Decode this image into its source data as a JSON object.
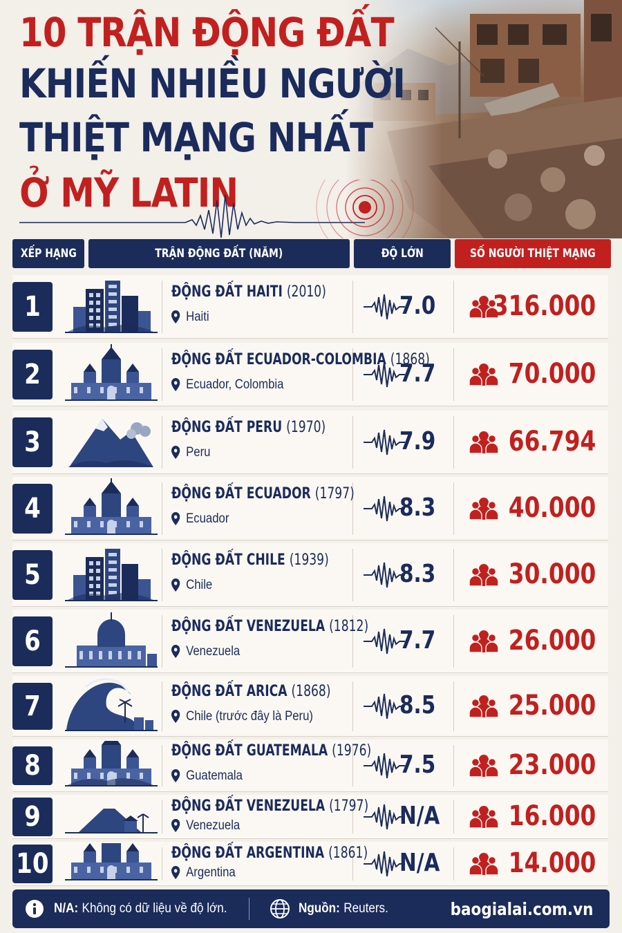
{
  "title": {
    "line1": "10 TRẬN ĐỘNG ĐẤT",
    "line2": "KHIẾN NHIỀU NGƯỜI",
    "line3": "THIỆT MẠNG NHẤT",
    "line4": "Ở MỸ LATIN"
  },
  "table": {
    "headers": {
      "rank": "XẾP HẠNG",
      "earthquake": "TRẬN ĐỘNG ĐẤT (NĂM)",
      "magnitude": "ĐỘ LỚN",
      "deaths": "SỐ NGƯỜI THIỆT MẠNG"
    },
    "rows": [
      {
        "rank": "1",
        "name": "ĐỘNG ĐẤT HAITI",
        "year": "(2010)",
        "location": "Haiti",
        "magnitude": "7.0",
        "deaths": "316.000",
        "illustration": "ruined-city"
      },
      {
        "rank": "2",
        "name": "ĐỘNG ĐẤT ECUADOR-COLOMBIA",
        "year": "(1868)",
        "location": "Ecuador, Colombia",
        "magnitude": "7.7",
        "deaths": "70.000",
        "illustration": "cathedral"
      },
      {
        "rank": "3",
        "name": "ĐỘNG ĐẤT PERU",
        "year": "(1970)",
        "location": "Peru",
        "magnitude": "7.9",
        "deaths": "66.794",
        "illustration": "mountain"
      },
      {
        "rank": "4",
        "name": "ĐỘNG ĐẤT ECUADOR",
        "year": "(1797)",
        "location": "Ecuador",
        "magnitude": "8.3",
        "deaths": "40.000",
        "illustration": "church"
      },
      {
        "rank": "5",
        "name": "ĐỘNG ĐẤT CHILE",
        "year": "(1939)",
        "location": "Chile",
        "magnitude": "8.3",
        "deaths": "30.000",
        "illustration": "ruined-city"
      },
      {
        "rank": "6",
        "name": "ĐỘNG ĐẤT VENEZUELA",
        "year": "(1812)",
        "location": "Venezuela",
        "magnitude": "7.7",
        "deaths": "26.000",
        "illustration": "domed-church"
      },
      {
        "rank": "7",
        "name": "ĐỘNG ĐẤT ARICA",
        "year": "(1868)",
        "location": "Chile (trước đây là Peru)",
        "magnitude": "8.5",
        "deaths": "25.000",
        "illustration": "tsunami"
      },
      {
        "rank": "8",
        "name": "ĐỘNG ĐẤT GUATEMALA",
        "year": "(1976)",
        "location": "Guatemala",
        "magnitude": "7.5",
        "deaths": "23.000",
        "illustration": "church-ruins"
      },
      {
        "rank": "9",
        "name": "ĐỘNG ĐẤT VENEZUELA",
        "year": "(1797)",
        "location": "Venezuela",
        "magnitude": "N/A",
        "deaths": "16.000",
        "illustration": "volcano-village"
      },
      {
        "rank": "10",
        "name": "ĐỘNG ĐẤT ARGENTINA",
        "year": "(1861)",
        "location": "Argentina",
        "magnitude": "N/A",
        "deaths": "14.000",
        "illustration": "town"
      }
    ]
  },
  "footer": {
    "note_label": "N/A:",
    "note_text": "Không có dữ liệu về độ lớn.",
    "source_label": "Nguồn:",
    "source_text": "Reuters.",
    "site": "baogialai.com.vn"
  },
  "colors": {
    "navy": "#1b2c5a",
    "red": "#c1201f",
    "background": "#f3efe9"
  }
}
